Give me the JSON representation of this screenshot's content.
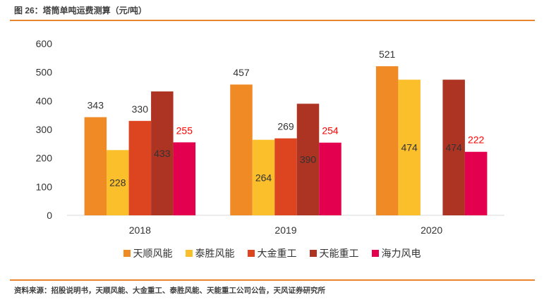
{
  "header": {
    "title": "图 26：塔筒单吨运费测算（元/吨）"
  },
  "footer": {
    "source": "资料来源：招股说明书，天顺风能、大金重工、泰胜风能、天能重工公司公告，天风证券研究所"
  },
  "chart_data": {
    "type": "bar",
    "title": "塔筒单吨运费测算（元/吨）",
    "xlabel": "",
    "ylabel": "",
    "ylim": [
      0,
      600
    ],
    "yticks": [
      "0",
      "100",
      "200",
      "300",
      "400",
      "500",
      "600"
    ],
    "categories": [
      "2018",
      "2019",
      "2020"
    ],
    "legend_position": "bottom",
    "series": [
      {
        "name": "天顺风能",
        "color": "#f08a24",
        "values": [
          343,
          457,
          521
        ],
        "labels": [
          "343",
          "457",
          "521"
        ],
        "label_color": "#333333"
      },
      {
        "name": "泰胜风能",
        "color": "#fbbf2b",
        "values": [
          228,
          264,
          474
        ],
        "labels": [
          "228",
          "264",
          "474"
        ],
        "label_color": "#333333"
      },
      {
        "name": "大金重工",
        "color": "#dd4420",
        "values": [
          330,
          269,
          null
        ],
        "labels": [
          "330",
          "269",
          ""
        ],
        "label_color": "#333333"
      },
      {
        "name": "天能重工",
        "color": "#ad3323",
        "values": [
          433,
          390,
          474
        ],
        "labels": [
          "433",
          "390",
          "474"
        ],
        "label_color": "#333333"
      },
      {
        "name": "海力风电",
        "color": "#e3004f",
        "values": [
          255,
          254,
          222
        ],
        "labels": [
          "255",
          "254",
          "222"
        ],
        "label_color": "#ff0000"
      }
    ]
  }
}
